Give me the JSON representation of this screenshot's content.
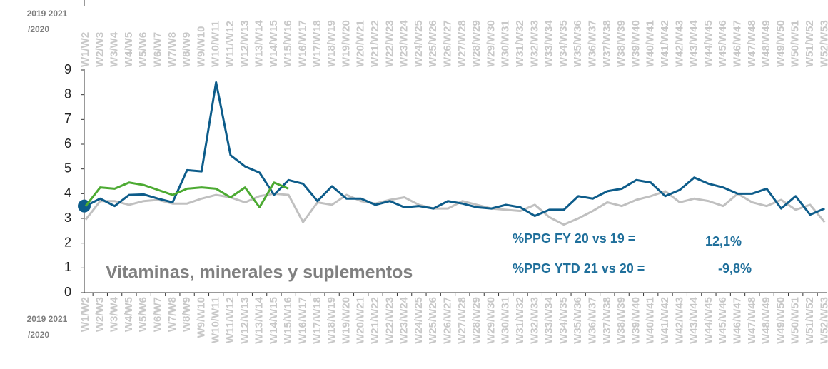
{
  "chart_data": {
    "type": "line",
    "subtitle": "Vitaminas, minerales y suplementos",
    "legend_labels": [
      "2019 2021",
      "/2020"
    ],
    "annotations": [
      "%PPG FY 20 vs 19 =",
      "12,1%",
      "%PPG YTD 21 vs 20 =",
      "-9,8%"
    ],
    "categories": [
      "W1/W2",
      "W2/W3",
      "W3/W4",
      "W4/W5",
      "W5/W6",
      "W6/W7",
      "W7/W8",
      "W8/W9",
      "W9/W10",
      "W10/W11",
      "W11/W12",
      "W12/W13",
      "W13/W14",
      "W14/W15",
      "W15/W16",
      "W16/W17",
      "W17/W18",
      "W18/W19",
      "W19/W20",
      "W20/W21",
      "W21/W22",
      "W22/W23",
      "W23/W24",
      "W24/W25",
      "W25/W26",
      "W26/W27",
      "W27/W28",
      "W28/W29",
      "W29/W30",
      "W30/W31",
      "W31/W32",
      "W32/W33",
      "W33/W34",
      "W34/W35",
      "W35/W36",
      "W36/W37",
      "W37/W38",
      "W38/W39",
      "W39/W40",
      "W40/W41",
      "W41/W42",
      "W42/W43",
      "W43/W44",
      "W44/W45",
      "W45/W46",
      "W46/W47",
      "W47/W48",
      "W48/W49",
      "W49/W50",
      "W50/W51",
      "W51/W52",
      "W52/W53"
    ],
    "series": [
      {
        "color": "#c0c0c0",
        "values": [
          2.95,
          3.7,
          3.7,
          3.55,
          3.7,
          3.75,
          3.6,
          3.6,
          3.8,
          3.95,
          3.85,
          3.65,
          3.9,
          4.0,
          3.95,
          2.85,
          3.65,
          3.55,
          3.95,
          3.7,
          3.6,
          3.75,
          3.85,
          3.55,
          3.4,
          3.4,
          3.7,
          3.55,
          3.4,
          3.35,
          3.3,
          3.55,
          3.05,
          2.75,
          3.0,
          3.3,
          3.65,
          3.5,
          3.75,
          3.9,
          4.1,
          3.65,
          3.8,
          3.7,
          3.5,
          4.0,
          3.65,
          3.5,
          3.75,
          3.35,
          3.55,
          2.85
        ]
      },
      {
        "color": "#0d5c8a",
        "values": [
          3.5,
          3.8,
          3.5,
          3.95,
          3.97,
          3.8,
          3.65,
          4.95,
          4.9,
          8.5,
          5.55,
          5.1,
          4.85,
          3.95,
          4.55,
          4.4,
          3.7,
          4.3,
          3.8,
          3.8,
          3.55,
          3.7,
          3.45,
          3.5,
          3.4,
          3.7,
          3.6,
          3.45,
          3.4,
          3.55,
          3.45,
          3.1,
          3.35,
          3.35,
          3.9,
          3.8,
          4.1,
          4.2,
          4.55,
          4.45,
          3.9,
          4.15,
          4.65,
          4.4,
          4.25,
          4.0,
          4.0,
          4.2,
          3.4,
          3.9,
          3.15,
          3.4
        ],
        "marker_first": true
      },
      {
        "color": "#4caa32",
        "values": [
          3.5,
          4.25,
          4.2,
          4.45,
          4.35,
          4.15,
          3.95,
          4.2,
          4.25,
          4.2,
          3.85,
          4.25,
          3.45,
          4.45,
          4.2,
          null,
          null,
          null,
          null,
          null,
          null,
          null,
          null,
          null,
          null,
          null,
          null,
          null,
          null,
          null,
          null,
          null,
          null,
          null,
          null,
          null,
          null,
          null,
          null,
          null,
          null,
          null,
          null,
          null,
          null,
          null,
          null,
          null,
          null,
          null,
          null,
          null
        ]
      }
    ],
    "ylim": [
      0,
      9
    ],
    "yticks": [
      0,
      1,
      2,
      3,
      4,
      5,
      6,
      7,
      8,
      9
    ]
  }
}
